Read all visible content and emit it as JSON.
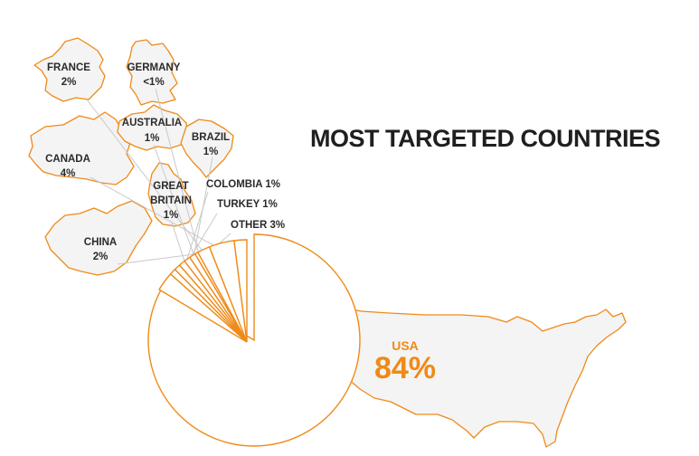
{
  "title": "MOST TARGETED COUNTRIES",
  "colors": {
    "accent": "#ef8a17",
    "text": "#2a2a2a",
    "map_fill": "#f4f4f4",
    "leader": "#c9c9c9"
  },
  "chart_data": {
    "type": "pie",
    "title": "MOST TARGETED COUNTRIES",
    "slices": [
      {
        "label": "USA",
        "value_label": "84%",
        "value": 84
      },
      {
        "label": "OTHER",
        "value_label": "3%",
        "value": 3
      },
      {
        "label": "TURKEY",
        "value_label": "1%",
        "value": 1
      },
      {
        "label": "COLOMBIA",
        "value_label": "1%",
        "value": 1
      },
      {
        "label": "GREAT BRITAIN",
        "value_label": "1%",
        "value": 1
      },
      {
        "label": "BRAZIL",
        "value_label": "1%",
        "value": 1
      },
      {
        "label": "AUSTRALIA",
        "value_label": "1%",
        "value": 1
      },
      {
        "label": "GERMANY",
        "value_label": "<1%",
        "value": 0.5
      },
      {
        "label": "FRANCE",
        "value_label": "2%",
        "value": 2
      },
      {
        "label": "CANADA",
        "value_label": "4%",
        "value": 4
      },
      {
        "label": "CHINA",
        "value_label": "2%",
        "value": 2
      }
    ]
  }
}
